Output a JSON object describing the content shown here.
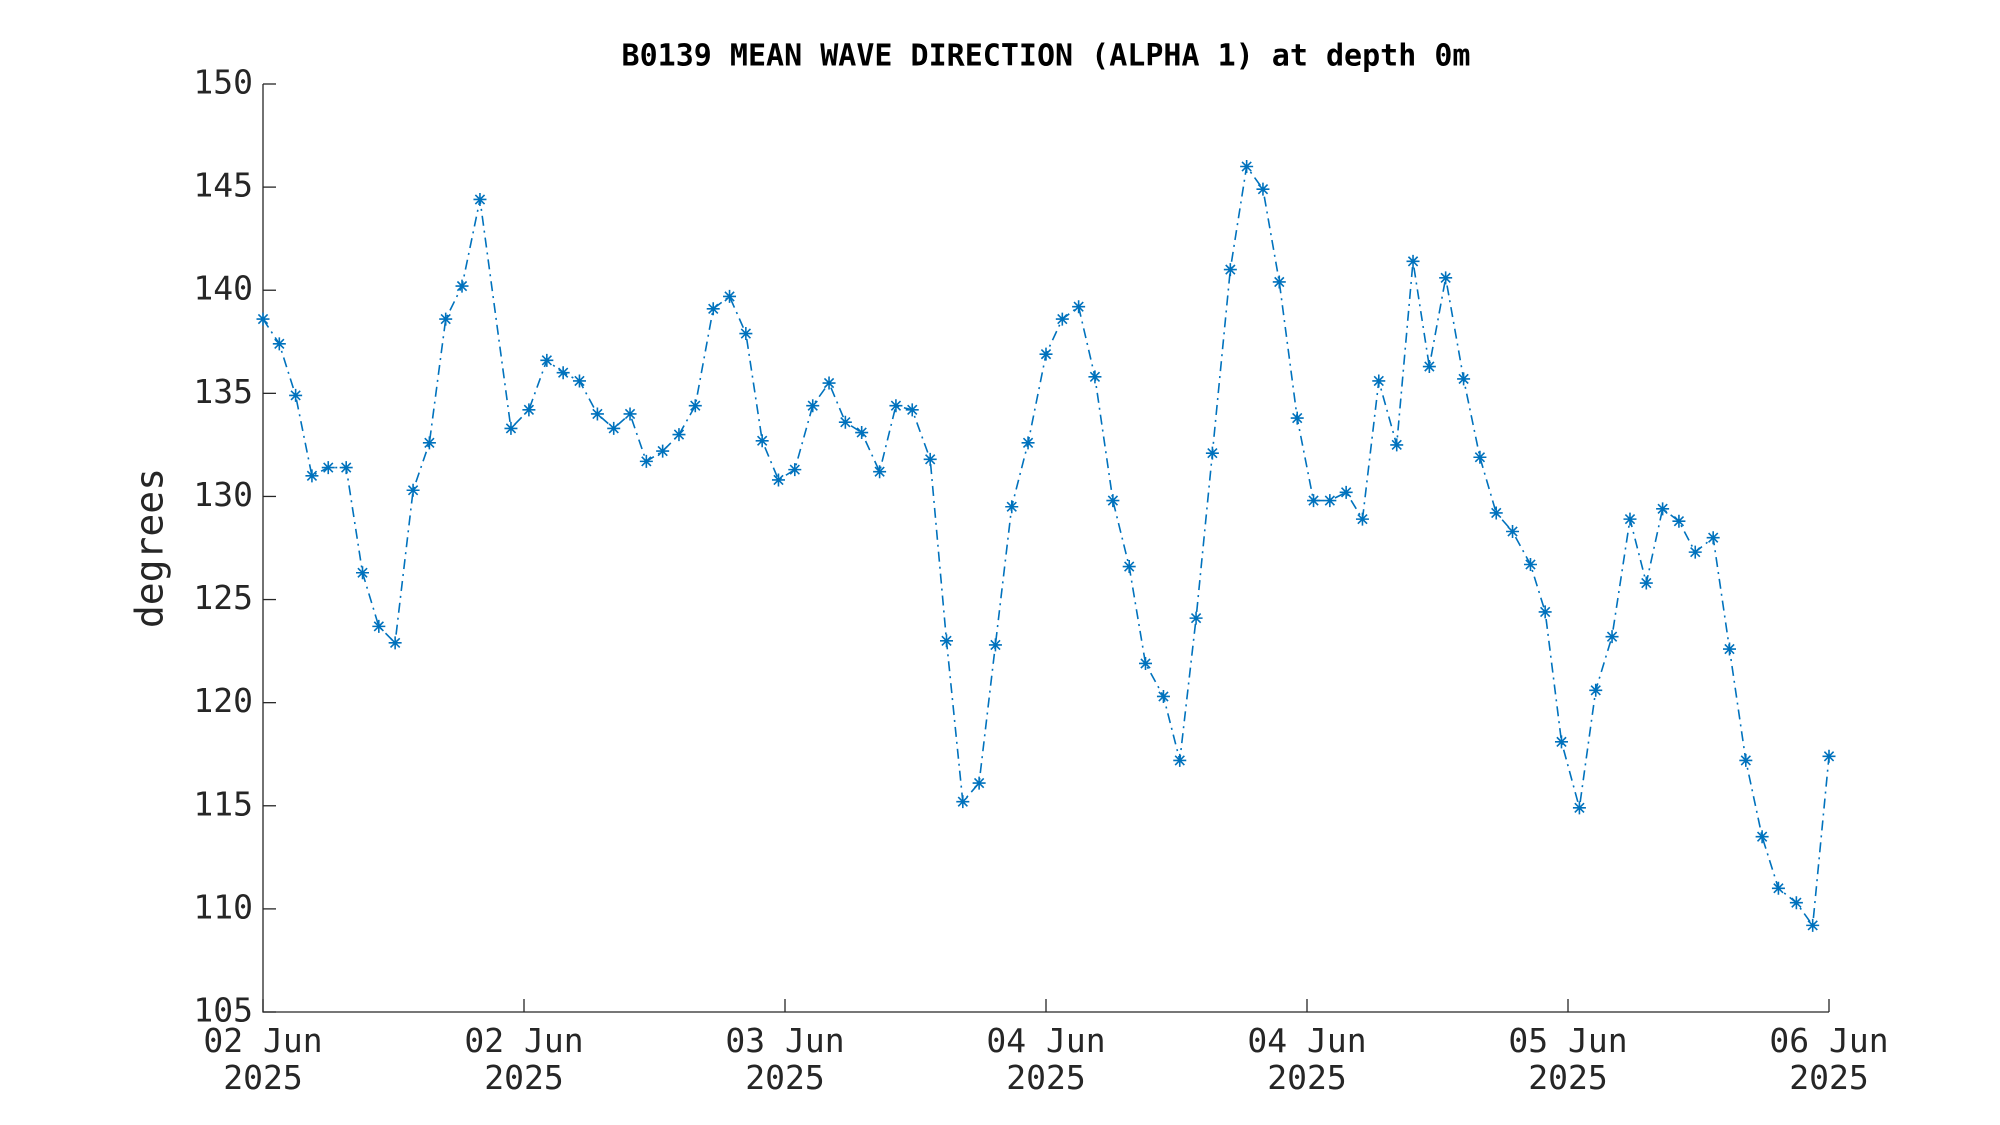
{
  "chart_data": {
    "type": "line",
    "title": "B0139 MEAN WAVE DIRECTION (ALPHA 1) at depth 0m",
    "ylabel": "degrees",
    "color": "#0072BD",
    "marker": "*",
    "linestyle": "-.",
    "xlim": [
      0,
      96
    ],
    "xticks": [
      {
        "value": 0,
        "label": "02 Jun\n2025"
      },
      {
        "value": 16,
        "label": "02 Jun\n2025"
      },
      {
        "value": 32,
        "label": "03 Jun\n2025"
      },
      {
        "value": 48,
        "label": "04 Jun\n2025"
      },
      {
        "value": 64,
        "label": "04 Jun\n2025"
      },
      {
        "value": 80,
        "label": "05 Jun\n2025"
      },
      {
        "value": 96,
        "label": "06 Jun\n2025"
      }
    ],
    "ylim": [
      105,
      150
    ],
    "yticks": [
      105,
      110,
      115,
      120,
      125,
      130,
      135,
      140,
      145,
      150
    ],
    "grid": false,
    "x": [
      0,
      1.0,
      2.0,
      3.0,
      4.0,
      5.1,
      6.1,
      7.1,
      8.1,
      9.2,
      10.2,
      11.2,
      12.2,
      13.3,
      15.2,
      16.3,
      17.4,
      18.4,
      19.4,
      20.5,
      21.5,
      22.5,
      23.5,
      24.5,
      25.5,
      26.5,
      27.6,
      28.6,
      29.6,
      30.6,
      31.6,
      32.6,
      33.7,
      34.7,
      35.7,
      36.7,
      37.8,
      38.8,
      39.8,
      40.9,
      41.9,
      42.9,
      43.9,
      44.9,
      45.9,
      46.9,
      48.0,
      49.0,
      50.0,
      51.0,
      52.1,
      53.1,
      54.1,
      55.2,
      56.2,
      57.2,
      58.2,
      59.3,
      60.3,
      61.3,
      62.3,
      63.4,
      64.4,
      65.4,
      66.4,
      67.4,
      68.4,
      69.5,
      70.5,
      71.5,
      72.5,
      73.6,
      74.6,
      75.6,
      76.6,
      77.7,
      78.6,
      79.6,
      80.7,
      81.7,
      82.7,
      83.8,
      84.8,
      85.8,
      86.8,
      87.8,
      88.9,
      89.9,
      90.9,
      91.9,
      92.9,
      94.0,
      95.0,
      96.0
    ],
    "values": [
      138.6,
      137.4,
      134.9,
      131.0,
      131.4,
      131.4,
      126.3,
      123.7,
      122.9,
      130.3,
      132.6,
      138.6,
      140.2,
      144.4,
      133.3,
      134.2,
      136.6,
      136.0,
      135.6,
      134.0,
      133.3,
      134.0,
      131.7,
      132.2,
      133.0,
      134.4,
      139.1,
      139.7,
      137.9,
      132.7,
      130.8,
      131.3,
      134.4,
      135.5,
      133.6,
      133.1,
      131.2,
      134.4,
      134.2,
      131.8,
      123.0,
      115.2,
      116.1,
      122.8,
      129.5,
      132.6,
      136.9,
      138.6,
      139.2,
      135.8,
      129.8,
      126.6,
      121.9,
      120.3,
      117.2,
      124.1,
      132.1,
      141.0,
      146.0,
      144.9,
      140.4,
      133.8,
      129.8,
      129.8,
      130.2,
      128.9,
      135.6,
      132.5,
      141.4,
      136.3,
      140.6,
      135.7,
      131.9,
      129.2,
      128.3,
      126.7,
      124.4,
      118.1,
      114.9,
      120.6,
      123.2,
      128.9,
      125.8,
      129.4,
      128.8,
      127.3,
      128.0,
      122.6,
      117.2,
      113.5,
      111.0,
      110.3,
      109.2,
      117.4
    ]
  }
}
